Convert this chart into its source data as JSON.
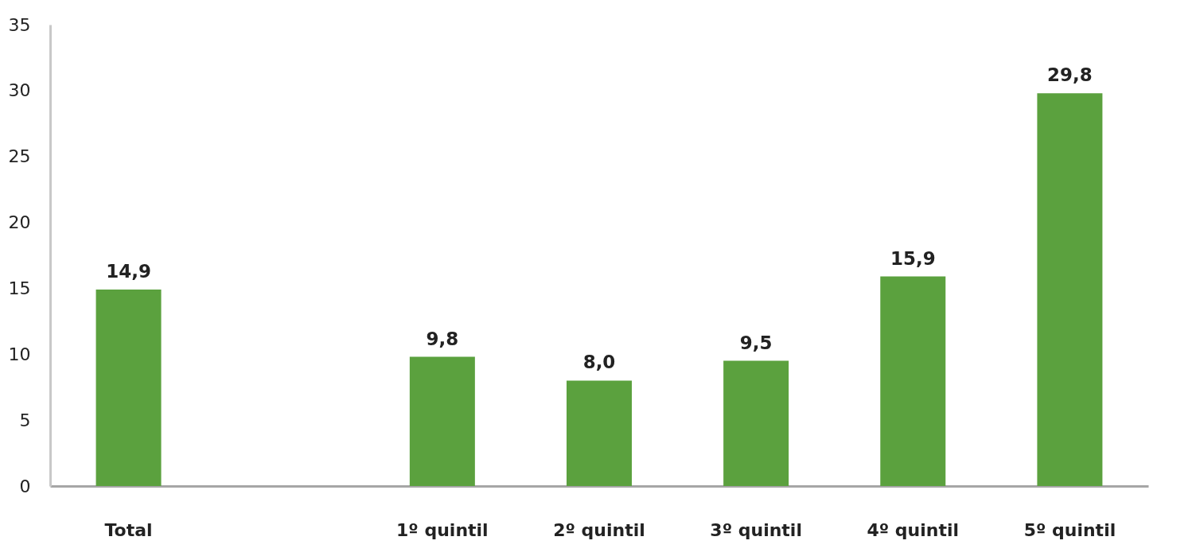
{
  "chart_data": {
    "type": "bar",
    "categories": [
      "Total",
      null,
      "1º quintil",
      "2º quintil",
      "3º quintil",
      "4º quintil",
      "5º quintil"
    ],
    "values": [
      14.9,
      null,
      9.8,
      8.0,
      9.5,
      15.9,
      29.8
    ],
    "value_labels": [
      "14,9",
      null,
      "9,8",
      "8,0",
      "9,5",
      "15,9",
      "29,8"
    ],
    "color": "#5ba13e",
    "ylim": [
      0,
      35
    ],
    "yticks": [
      0,
      5,
      10,
      15,
      20,
      25,
      30,
      35
    ],
    "grid": false
  }
}
